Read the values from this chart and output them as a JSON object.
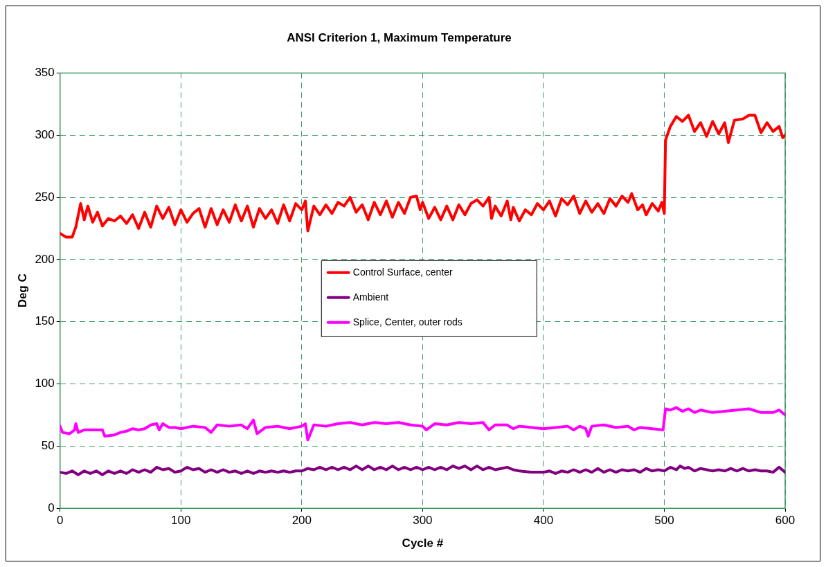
{
  "chart_data": {
    "type": "line",
    "title": "ANSI Criterion 1, Maximum Temperature",
    "xlabel": "Cycle #",
    "ylabel": "Deg C",
    "xlim": [
      0,
      600
    ],
    "xticks": [
      0,
      100,
      200,
      300,
      400,
      500,
      600
    ],
    "ylim": [
      0,
      350
    ],
    "yticks": [
      0,
      50,
      100,
      150,
      200,
      250,
      300,
      350
    ],
    "grid": true,
    "legend": "center",
    "marker": "none",
    "line_style": "solid",
    "series": [
      {
        "name": "Control Surface, center",
        "color": "#ff0000",
        "x": [
          0,
          5,
          10,
          13,
          17,
          20,
          23,
          27,
          31,
          35,
          40,
          45,
          50,
          55,
          60,
          65,
          70,
          75,
          80,
          85,
          90,
          95,
          100,
          105,
          110,
          115,
          120,
          125,
          130,
          135,
          140,
          145,
          150,
          155,
          160,
          165,
          170,
          175,
          180,
          185,
          190,
          195,
          200,
          203,
          205,
          210,
          215,
          220,
          225,
          230,
          235,
          240,
          245,
          250,
          255,
          260,
          265,
          270,
          275,
          280,
          285,
          290,
          295,
          298,
          300,
          305,
          310,
          315,
          320,
          325,
          330,
          335,
          340,
          345,
          350,
          355,
          357,
          360,
          365,
          370,
          373,
          375,
          380,
          385,
          390,
          395,
          400,
          405,
          410,
          415,
          420,
          425,
          430,
          435,
          440,
          445,
          450,
          455,
          460,
          465,
          470,
          473,
          478,
          482,
          485,
          490,
          495,
          498,
          500,
          501,
          505,
          510,
          515,
          520,
          525,
          530,
          535,
          540,
          545,
          550,
          553,
          558,
          565,
          570,
          575,
          580,
          585,
          590,
          595,
          598,
          600
        ],
        "values": [
          221,
          218,
          218,
          226,
          245,
          232,
          243,
          230,
          238,
          227,
          233,
          231,
          235,
          229,
          236,
          225,
          238,
          226,
          243,
          233,
          242,
          228,
          240,
          230,
          237,
          241,
          226,
          241,
          228,
          240,
          230,
          244,
          231,
          243,
          226,
          241,
          233,
          240,
          229,
          244,
          231,
          245,
          240,
          247,
          223,
          243,
          236,
          244,
          237,
          246,
          243,
          250,
          238,
          244,
          232,
          246,
          236,
          247,
          234,
          246,
          237,
          250,
          251,
          240,
          246,
          233,
          242,
          232,
          243,
          232,
          244,
          236,
          245,
          248,
          243,
          250,
          233,
          243,
          235,
          247,
          232,
          242,
          231,
          240,
          236,
          245,
          240,
          247,
          235,
          249,
          244,
          251,
          237,
          247,
          238,
          245,
          237,
          249,
          243,
          251,
          246,
          253,
          240,
          244,
          236,
          245,
          239,
          246,
          237,
          296,
          307,
          315,
          311,
          316,
          303,
          310,
          299,
          311,
          301,
          310,
          294,
          312,
          313,
          316,
          316,
          302,
          310,
          303,
          307,
          298,
          300
        ]
      },
      {
        "name": "Ambient",
        "color": "#800080",
        "x": [
          0,
          5,
          10,
          15,
          20,
          25,
          30,
          35,
          40,
          45,
          50,
          55,
          60,
          65,
          70,
          75,
          80,
          85,
          90,
          95,
          100,
          105,
          110,
          115,
          120,
          125,
          130,
          135,
          140,
          145,
          150,
          155,
          160,
          165,
          170,
          175,
          180,
          185,
          190,
          195,
          200,
          205,
          210,
          215,
          220,
          225,
          230,
          235,
          240,
          245,
          250,
          255,
          260,
          265,
          270,
          275,
          280,
          285,
          290,
          295,
          300,
          305,
          310,
          315,
          320,
          325,
          330,
          335,
          340,
          345,
          350,
          355,
          360,
          365,
          370,
          375,
          380,
          390,
          400,
          405,
          410,
          415,
          420,
          425,
          430,
          435,
          440,
          445,
          450,
          455,
          460,
          465,
          470,
          475,
          480,
          485,
          490,
          495,
          500,
          505,
          510,
          513,
          517,
          520,
          525,
          530,
          535,
          540,
          545,
          550,
          555,
          560,
          565,
          570,
          575,
          580,
          585,
          590,
          595,
          600
        ],
        "values": [
          29,
          28,
          30,
          27,
          30,
          28,
          30,
          27,
          30,
          28,
          30,
          28,
          31,
          29,
          31,
          29,
          33,
          31,
          32,
          29,
          30,
          33,
          31,
          32,
          29,
          31,
          29,
          31,
          29,
          30,
          28,
          30,
          28,
          30,
          29,
          30,
          29,
          30,
          29,
          30,
          30,
          32,
          31,
          33,
          31,
          33,
          31,
          33,
          31,
          34,
          31,
          34,
          31,
          33,
          31,
          34,
          31,
          33,
          31,
          33,
          31,
          33,
          31,
          33,
          31,
          34,
          32,
          34,
          31,
          34,
          31,
          33,
          31,
          32,
          33,
          31,
          30,
          29,
          29,
          30,
          28,
          30,
          29,
          31,
          29,
          31,
          29,
          32,
          29,
          31,
          29,
          31,
          30,
          31,
          29,
          32,
          30,
          31,
          30,
          33,
          31,
          34,
          32,
          33,
          30,
          32,
          31,
          30,
          31,
          30,
          32,
          30,
          32,
          30,
          31,
          30,
          30,
          29,
          33,
          29
        ]
      },
      {
        "name": "Splice, Center, outer rods",
        "color": "#ff00ff",
        "x": [
          0,
          2,
          8,
          12,
          13,
          15,
          20,
          30,
          35,
          37,
          45,
          50,
          55,
          60,
          65,
          70,
          75,
          80,
          82,
          85,
          90,
          95,
          100,
          110,
          120,
          125,
          130,
          140,
          150,
          155,
          160,
          163,
          170,
          180,
          190,
          200,
          203,
          205,
          210,
          220,
          230,
          240,
          250,
          260,
          270,
          280,
          290,
          300,
          303,
          310,
          320,
          330,
          340,
          350,
          355,
          360,
          370,
          375,
          380,
          390,
          400,
          410,
          420,
          425,
          430,
          435,
          437,
          440,
          450,
          460,
          470,
          475,
          480,
          490,
          499,
          501,
          505,
          510,
          515,
          520,
          525,
          530,
          540,
          550,
          560,
          570,
          580,
          590,
          595,
          600
        ],
        "values": [
          66,
          61,
          60,
          63,
          68,
          61,
          63,
          63,
          63,
          58,
          59,
          61,
          62,
          64,
          63,
          64,
          67,
          68,
          63,
          68,
          65,
          65,
          64,
          66,
          65,
          61,
          67,
          66,
          67,
          64,
          71,
          60,
          65,
          66,
          64,
          66,
          68,
          55,
          67,
          66,
          68,
          69,
          67,
          69,
          68,
          69,
          67,
          66,
          63,
          68,
          67,
          69,
          68,
          69,
          63,
          67,
          67,
          64,
          66,
          65,
          64,
          65,
          66,
          63,
          66,
          64,
          58,
          66,
          67,
          65,
          66,
          63,
          65,
          64,
          63,
          80,
          79,
          81,
          78,
          80,
          77,
          79,
          77,
          78,
          79,
          80,
          77,
          77,
          79,
          75
        ]
      }
    ]
  }
}
